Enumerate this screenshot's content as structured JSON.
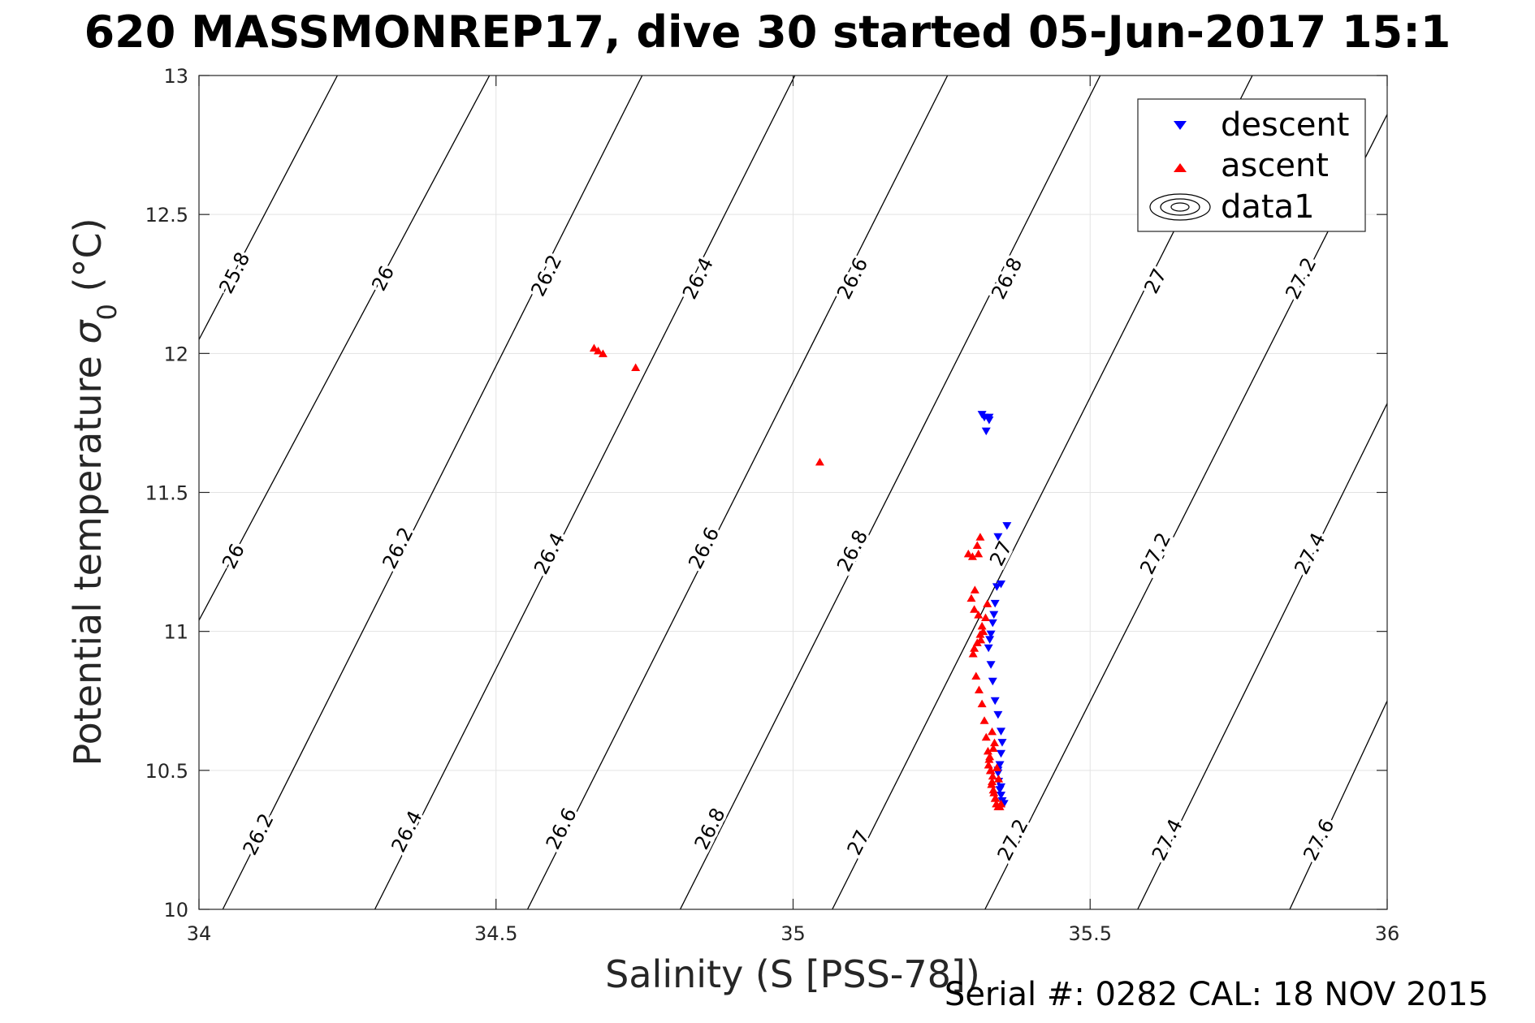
{
  "title": "620 MASSMONREP17, dive 30 started 05-Jun-2017 15:1",
  "footer": "Serial #: 0282  CAL: 18 NOV 2015",
  "chart_data": {
    "type": "scatter",
    "xlabel": "Salinity (S [PSS-78])",
    "ylabel_main": "Potential temperature ",
    "ylabel_sym": "σ",
    "ylabel_sub": "0",
    "ylabel_unit": " (°C)",
    "xlim": [
      34,
      36
    ],
    "ylim": [
      10,
      13
    ],
    "x_ticks": [
      34,
      34.5,
      35,
      35.5,
      36
    ],
    "x_tick_labels": [
      "34",
      "34.5",
      "35",
      "35.5",
      "36"
    ],
    "y_ticks": [
      10,
      10.5,
      11,
      11.5,
      12,
      12.5,
      13
    ],
    "y_tick_labels": [
      "10",
      "10.5",
      "11",
      "11.5",
      "12",
      "12.5",
      "13"
    ],
    "grid": true,
    "legend_position": "top-right",
    "legend": [
      {
        "label": "descent",
        "marker": "triangle-down",
        "color": "#0000ff"
      },
      {
        "label": "ascent",
        "marker": "triangle-up",
        "color": "#ff0000"
      },
      {
        "label": "data1",
        "marker": "contour",
        "color": "#000000"
      }
    ],
    "contours": {
      "line_color": "#000000",
      "lines": [
        {
          "level": 25.8,
          "x": [
            34.0,
            34.233
          ],
          "y": [
            12.05,
            13.0
          ]
        },
        {
          "level": 26.0,
          "x": [
            34.0,
            34.489
          ],
          "y": [
            11.04,
            13.0
          ]
        },
        {
          "level": 26.2,
          "x": [
            34.04,
            34.746
          ],
          "y": [
            10.0,
            13.0
          ]
        },
        {
          "level": 26.4,
          "x": [
            34.296,
            35.003
          ],
          "y": [
            10.0,
            13.0
          ]
        },
        {
          "level": 26.6,
          "x": [
            34.553,
            35.26
          ],
          "y": [
            10.0,
            13.0
          ]
        },
        {
          "level": 26.8,
          "x": [
            34.81,
            35.517
          ],
          "y": [
            10.0,
            13.0
          ]
        },
        {
          "level": 27.0,
          "x": [
            35.066,
            35.773
          ],
          "y": [
            10.0,
            13.0
          ]
        },
        {
          "level": 27.2,
          "x": [
            35.323,
            36.0
          ],
          "y": [
            10.0,
            12.86
          ]
        },
        {
          "level": 27.4,
          "x": [
            35.58,
            36.0
          ],
          "y": [
            10.0,
            11.82
          ]
        },
        {
          "level": 27.6,
          "x": [
            35.836,
            36.0
          ],
          "y": [
            10.0,
            10.75
          ]
        }
      ],
      "labels": [
        {
          "text": "25.8",
          "x": 34.06,
          "y": 12.29
        },
        {
          "text": "26",
          "x": 34.31,
          "y": 12.27
        },
        {
          "text": "26.2",
          "x": 34.585,
          "y": 12.28
        },
        {
          "text": "26.4",
          "x": 34.84,
          "y": 12.27
        },
        {
          "text": "26.6",
          "x": 35.1,
          "y": 12.27
        },
        {
          "text": "26.8",
          "x": 35.36,
          "y": 12.27
        },
        {
          "text": "27",
          "x": 35.61,
          "y": 12.26
        },
        {
          "text": "27.2",
          "x": 35.855,
          "y": 12.27
        },
        {
          "text": "26",
          "x": 34.058,
          "y": 11.27
        },
        {
          "text": "26.2",
          "x": 34.335,
          "y": 11.3
        },
        {
          "text": "26.4",
          "x": 34.59,
          "y": 11.28
        },
        {
          "text": "26.6",
          "x": 34.85,
          "y": 11.3
        },
        {
          "text": "26.8",
          "x": 35.1,
          "y": 11.29
        },
        {
          "text": "27",
          "x": 35.35,
          "y": 11.28
        },
        {
          "text": "27.2",
          "x": 35.61,
          "y": 11.28
        },
        {
          "text": "27.4",
          "x": 35.87,
          "y": 11.28
        },
        {
          "text": "26.2",
          "x": 34.1,
          "y": 10.27
        },
        {
          "text": "26.4",
          "x": 34.35,
          "y": 10.28
        },
        {
          "text": "26.6",
          "x": 34.61,
          "y": 10.29
        },
        {
          "text": "26.8",
          "x": 34.86,
          "y": 10.29
        },
        {
          "text": "27",
          "x": 35.11,
          "y": 10.24
        },
        {
          "text": "27.2",
          "x": 35.37,
          "y": 10.25
        },
        {
          "text": "27.4",
          "x": 35.63,
          "y": 10.25
        },
        {
          "text": "27.6",
          "x": 35.885,
          "y": 10.25
        }
      ]
    },
    "series": [
      {
        "name": "descent",
        "marker": "triangle-down",
        "color": "#0000ff",
        "x": [
          35.318,
          35.322,
          35.33,
          35.325,
          35.33,
          35.345,
          35.36,
          35.35,
          35.343,
          35.34,
          35.338,
          35.336,
          35.333,
          35.331,
          35.329,
          35.333,
          35.336,
          35.34,
          35.345,
          35.35,
          35.352,
          35.35,
          35.348,
          35.345,
          35.346,
          35.348,
          35.35,
          35.352,
          35.355,
          35.35,
          35.345
        ],
        "y": [
          11.78,
          11.77,
          11.77,
          11.72,
          11.76,
          11.34,
          11.38,
          11.17,
          11.16,
          11.1,
          11.06,
          11.03,
          10.99,
          10.97,
          10.94,
          10.88,
          10.82,
          10.75,
          10.7,
          10.64,
          10.6,
          10.56,
          10.52,
          10.49,
          10.46,
          10.43,
          10.41,
          10.39,
          10.38,
          10.44,
          10.5
        ]
      },
      {
        "name": "ascent",
        "marker": "triangle-up",
        "color": "#ff0000",
        "x": [
          34.665,
          34.672,
          34.68,
          34.735,
          35.045,
          35.295,
          35.302,
          35.31,
          35.315,
          35.312,
          35.306,
          35.3,
          35.305,
          35.312,
          35.318,
          35.315,
          35.31,
          35.305,
          35.303,
          35.308,
          35.313,
          35.318,
          35.322,
          35.325,
          35.328,
          35.33,
          35.332,
          35.335,
          35.337,
          35.34,
          35.342,
          35.345,
          35.348,
          35.35,
          35.331,
          35.329,
          35.333,
          35.336,
          35.334,
          35.338,
          35.341,
          35.337,
          35.343,
          35.346,
          35.339,
          35.335,
          35.327,
          35.324,
          35.32,
          35.316
        ],
        "y": [
          12.02,
          12.01,
          12.0,
          11.95,
          11.61,
          11.28,
          11.27,
          11.31,
          11.34,
          11.28,
          11.15,
          11.12,
          11.08,
          11.06,
          11.02,
          10.99,
          10.96,
          10.94,
          10.92,
          10.84,
          10.79,
          10.74,
          10.68,
          10.62,
          10.57,
          10.54,
          10.5,
          10.46,
          10.43,
          10.4,
          10.38,
          10.37,
          10.37,
          10.38,
          10.55,
          10.52,
          10.5,
          10.48,
          10.45,
          10.42,
          10.4,
          10.58,
          10.51,
          10.47,
          10.6,
          10.64,
          11.1,
          11.05,
          11.0,
          10.97
        ]
      }
    ]
  }
}
